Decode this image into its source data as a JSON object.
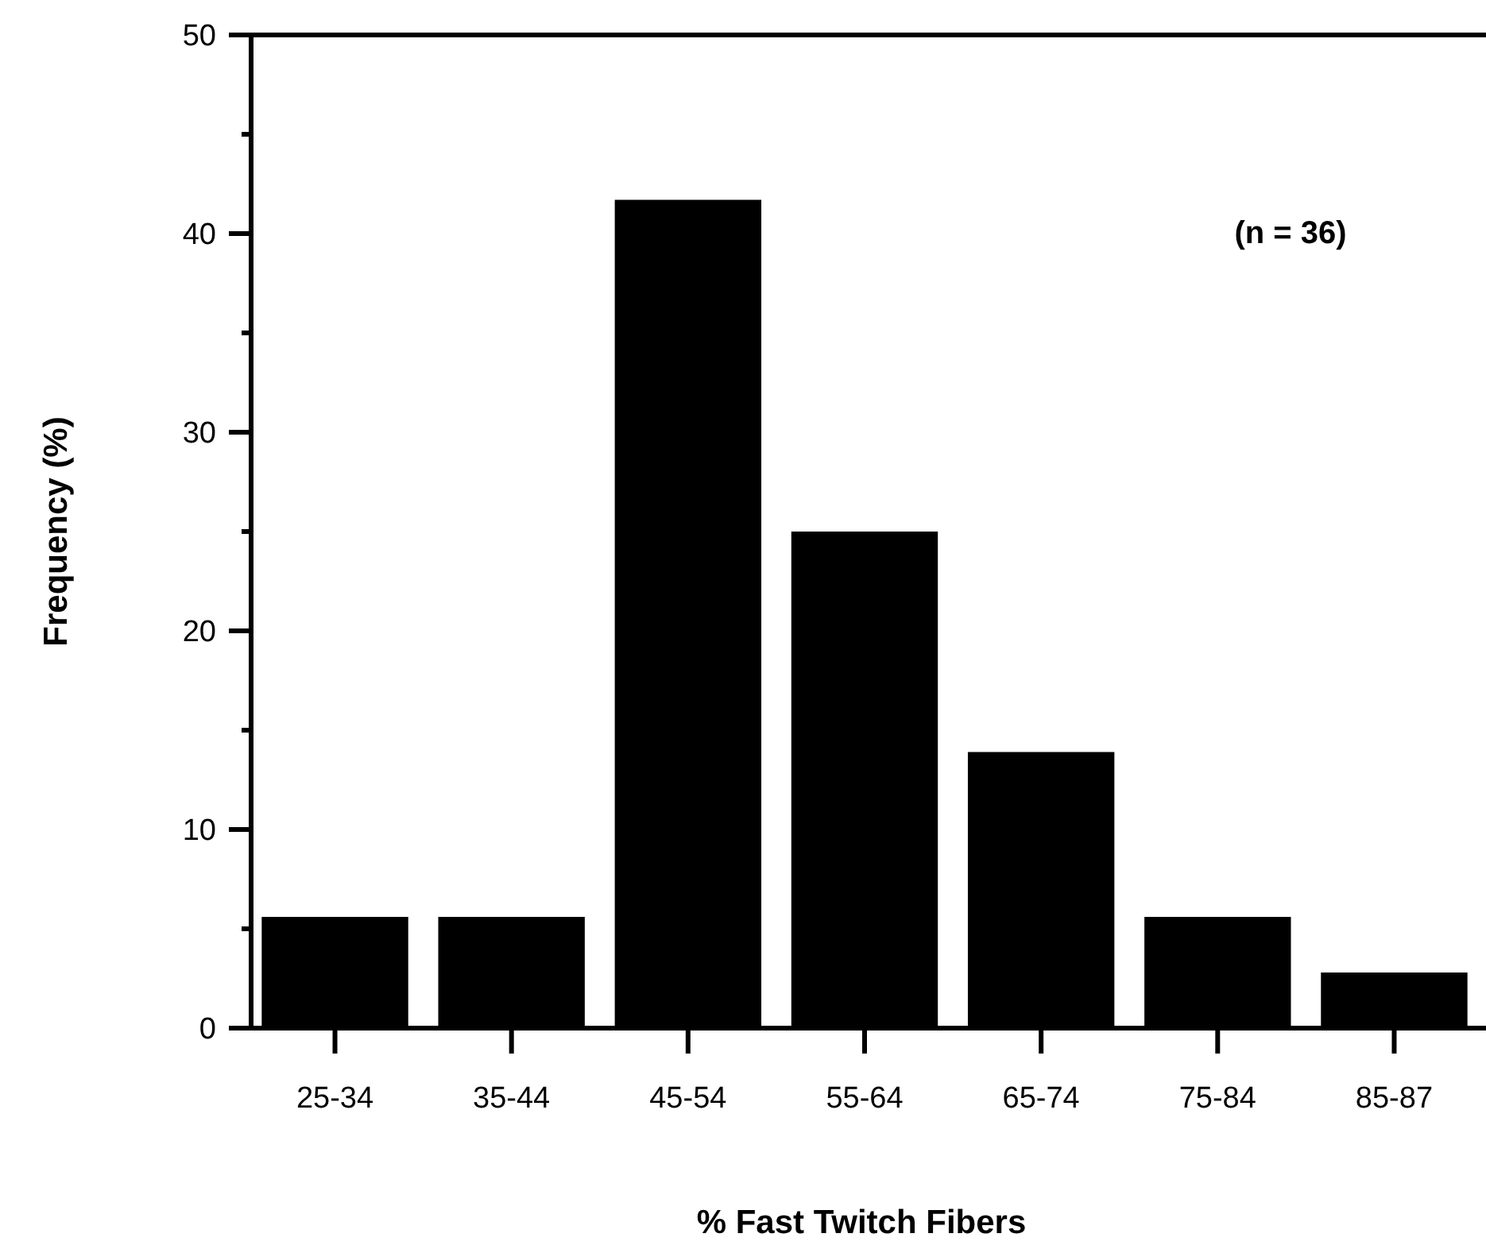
{
  "chart_data": {
    "type": "bar",
    "xlabel": "% Fast Twitch Fibers",
    "ylabel": "Frequency (%)",
    "categories": [
      "25-34",
      "35-44",
      "45-54",
      "55-64",
      "65-74",
      "75-84",
      "85-87"
    ],
    "values": [
      5.6,
      5.6,
      41.7,
      25,
      13.9,
      5.6,
      2.8
    ],
    "color": "#000000",
    "ylim": [
      0,
      50
    ],
    "yticks": [
      0,
      {
        "value": 5,
        "label": null
      },
      10,
      {
        "value": 15,
        "label": null
      },
      20,
      {
        "value": 25,
        "label": null
      },
      30,
      {
        "value": 35,
        "label": null
      },
      40,
      {
        "value": 45,
        "label": null
      },
      50
    ],
    "annotations": [
      "(n = 36)"
    ],
    "grid": false
  }
}
